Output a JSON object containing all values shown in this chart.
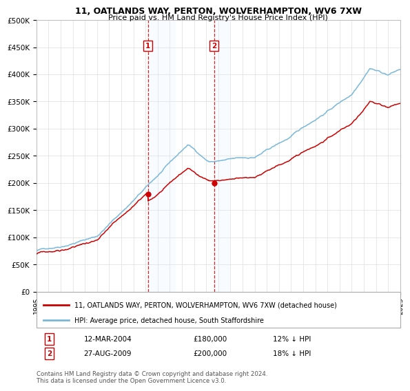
{
  "title": "11, OATLANDS WAY, PERTON, WOLVERHAMPTON, WV6 7XW",
  "subtitle": "Price paid vs. HM Land Registry's House Price Index (HPI)",
  "x_start_year": 1995,
  "x_end_year": 2025,
  "y_min": 0,
  "y_max": 500000,
  "y_ticks": [
    0,
    50000,
    100000,
    150000,
    200000,
    250000,
    300000,
    350000,
    400000,
    450000,
    500000
  ],
  "y_tick_labels": [
    "£0",
    "£50K",
    "£100K",
    "£150K",
    "£200K",
    "£250K",
    "£300K",
    "£350K",
    "£400K",
    "£450K",
    "£500K"
  ],
  "sale1_year": 2004.19,
  "sale1_price": 180000,
  "sale2_year": 2009.65,
  "sale2_price": 200000,
  "hpi_line_color": "#7ab8d9",
  "price_line_color": "#cc0000",
  "sale_dot_color": "#cc0000",
  "shade_color": "#ddeeff",
  "dashed_line_color": "#cc0000",
  "legend_label_price": "11, OATLANDS WAY, PERTON, WOLVERHAMPTON, WV6 7XW (detached house)",
  "legend_label_hpi": "HPI: Average price, detached house, South Staffordshire",
  "annotation1_date": "12-MAR-2004",
  "annotation1_price": "£180,000",
  "annotation1_pct": "12% ↓ HPI",
  "annotation2_date": "27-AUG-2009",
  "annotation2_price": "£200,000",
  "annotation2_pct": "18% ↓ HPI",
  "footer": "Contains HM Land Registry data © Crown copyright and database right 2024.\nThis data is licensed under the Open Government Licence v3.0.",
  "background_color": "#ffffff",
  "grid_color": "#dddddd"
}
